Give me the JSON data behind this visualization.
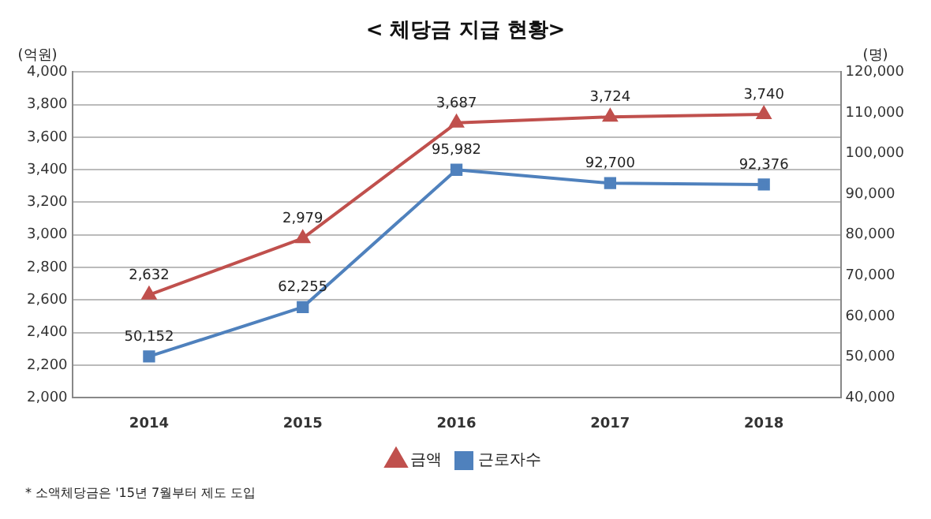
{
  "chart_data": {
    "type": "line",
    "title": "< 체당금 지급 현황>",
    "ylabel": "(억원)",
    "y2label": "(명)",
    "categories": [
      "2014",
      "2015",
      "2016",
      "2017",
      "2018"
    ],
    "series": [
      {
        "name": "금액",
        "color": "#c0504d",
        "values": [
          2632,
          2979,
          3687,
          3724,
          3740
        ],
        "value_labels": [
          "2,632",
          "2,979",
          "3,687",
          "3,724",
          "3,740"
        ],
        "marker": "triangle"
      },
      {
        "name": "근로자수",
        "color": "#4f81bd",
        "values": [
          50152,
          62255,
          95982,
          92700,
          92376
        ],
        "value_labels": [
          "50,152",
          "62,255",
          "95,982",
          "92,700",
          "92,376"
        ],
        "axis": "y2",
        "marker": "square"
      }
    ],
    "ylim": [
      2000,
      4000
    ],
    "yticks": [
      {
        "value": 2000,
        "label": "2,000"
      },
      {
        "value": 2200,
        "label": "2,200"
      },
      {
        "value": 2400,
        "label": "2,400"
      },
      {
        "value": 2600,
        "label": "2,600"
      },
      {
        "value": 2800,
        "label": "2,800"
      },
      {
        "value": 3000,
        "label": "3,000"
      },
      {
        "value": 3200,
        "label": "3,200"
      },
      {
        "value": 3400,
        "label": "3,400"
      },
      {
        "value": 3600,
        "label": "3,600"
      },
      {
        "value": 3800,
        "label": "3,800"
      },
      {
        "value": 4000,
        "label": "4,000"
      }
    ],
    "y2lim": [
      40000,
      120000
    ],
    "y2ticks": [
      {
        "value": 40000,
        "label": "40,000"
      },
      {
        "value": 50000,
        "label": "50,000"
      },
      {
        "value": 60000,
        "label": "60,000"
      },
      {
        "value": 70000,
        "label": "70,000"
      },
      {
        "value": 80000,
        "label": "80,000"
      },
      {
        "value": 90000,
        "label": "90,000"
      },
      {
        "value": 100000,
        "label": "100,000"
      },
      {
        "value": 110000,
        "label": "110,000"
      },
      {
        "value": 120000,
        "label": "120,000"
      }
    ],
    "grid": "y",
    "legend": "bottom",
    "annotations": [
      "* 소액체당금은 '15년 7월부터 제도 도입"
    ]
  }
}
